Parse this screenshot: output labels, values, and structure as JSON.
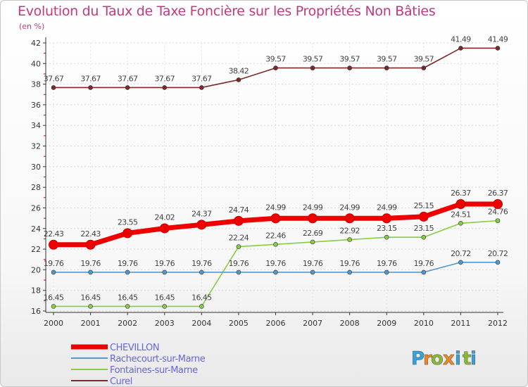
{
  "chart_data": {
    "type": "line",
    "title": "Evolution du Taux de Taxe Foncière sur les Propriétés Non Bâties",
    "ylabel": "(en %)",
    "xlabel": "",
    "ylim": [
      16,
      42
    ],
    "yticks": [
      16,
      18,
      20,
      22,
      24,
      26,
      28,
      30,
      32,
      34,
      36,
      38,
      40,
      42
    ],
    "categories": [
      "2000",
      "2001",
      "2002",
      "2003",
      "2004",
      "2005",
      "2006",
      "2007",
      "2008",
      "2009",
      "2010",
      "2011",
      "2012"
    ],
    "series": [
      {
        "name": "Curel",
        "color": "#7a2828",
        "values": [
          37.67,
          37.67,
          37.67,
          37.67,
          37.67,
          38.42,
          39.57,
          39.57,
          39.57,
          39.57,
          39.57,
          41.49,
          41.49
        ],
        "labels": [
          "37.67",
          "37.67",
          "37.67",
          "37.67",
          "37.67",
          "38.42",
          "39.57",
          "39.57",
          "39.57",
          "39.57",
          "39.57",
          "41.49",
          "41.49"
        ]
      },
      {
        "name": "Fontaines-sur-Marne",
        "color": "#88cc44",
        "values": [
          16.45,
          16.45,
          16.45,
          16.45,
          16.45,
          22.24,
          22.46,
          22.69,
          22.92,
          23.15,
          23.15,
          24.51,
          24.76
        ],
        "labels": [
          "16.45",
          "16.45",
          "16.45",
          "16.45",
          "16.45",
          "22.24",
          "22.46",
          "22.69",
          "22.92",
          "23.15",
          "23.15",
          "24.51",
          "24.76"
        ]
      },
      {
        "name": "Rachecourt-sur-Marne",
        "color": "#5599cc",
        "values": [
          19.76,
          19.76,
          19.76,
          19.76,
          19.76,
          19.76,
          19.76,
          19.76,
          19.76,
          19.76,
          19.76,
          20.72,
          20.72
        ],
        "labels": [
          "19.76",
          "19.76",
          "19.76",
          "19.76",
          "19.76",
          "19.76",
          "19.76",
          "19.76",
          "19.76",
          "19.76",
          "19.76",
          "20.72",
          "20.72"
        ]
      },
      {
        "name": "CHEVILLON",
        "color": "#ee0000",
        "values": [
          22.43,
          22.43,
          23.55,
          24.02,
          24.37,
          24.74,
          24.99,
          24.99,
          24.99,
          24.99,
          25.15,
          26.37,
          26.37
        ],
        "labels": [
          "22.43",
          "22.43",
          "23.55",
          "24.02",
          "24.37",
          "24.74",
          "24.99",
          "24.99",
          "24.99",
          "24.99",
          "25.15",
          "26.37",
          "26.37"
        ]
      }
    ],
    "legend": [
      {
        "name": "CHEVILLON",
        "color": "#ee0000",
        "text_color": "#6666dd"
      },
      {
        "name": "Rachecourt-sur-Marne",
        "color": "#5599cc",
        "text_color": "#6666dd"
      },
      {
        "name": "Fontaines-sur-Marne",
        "color": "#88cc44",
        "text_color": "#6666dd"
      },
      {
        "name": "Curel",
        "color": "#7a2828",
        "text_color": "#6666dd"
      }
    ],
    "legend_position": "bottom-left"
  },
  "brand": {
    "letters": [
      "P",
      "r",
      "o",
      "x",
      "i",
      "t",
      "i"
    ],
    "colors": [
      "#33a3dd",
      "#ee8822",
      "#88bb33",
      "#ee8822",
      "#33a3dd",
      "#88bb33",
      "#33a3dd"
    ]
  }
}
